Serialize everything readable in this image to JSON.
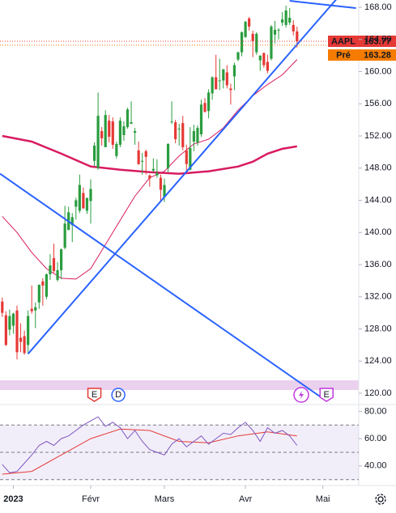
{
  "chart_data": {
    "type": "candlestick",
    "symbol": "AAPL",
    "last": {
      "label": "163.77",
      "value": 163.77
    },
    "pre": {
      "name": "Pré",
      "label": "163.28",
      "value": 163.28
    },
    "up_color": "#2a9d3f",
    "down_color": "#e53935",
    "ylim": [
      120,
      168
    ],
    "yticks": [
      {
        "value": 120,
        "label": "120.00"
      },
      {
        "value": 124,
        "label": "124.00"
      },
      {
        "value": 128,
        "label": "128.00"
      },
      {
        "value": 132,
        "label": "132.00"
      },
      {
        "value": 136,
        "label": "136.00"
      },
      {
        "value": 140,
        "label": "140.00"
      },
      {
        "value": 144,
        "label": "144.00"
      },
      {
        "value": 148,
        "label": "148.00"
      },
      {
        "value": 152,
        "label": "152.00"
      },
      {
        "value": 156,
        "label": "156.00"
      },
      {
        "value": 160,
        "label": "160.00"
      },
      {
        "value": 164,
        "label": "164.00"
      },
      {
        "value": 168,
        "label": "168.00"
      }
    ],
    "xticks": [
      {
        "value": 3,
        "label": "2023"
      },
      {
        "value": 24,
        "label": "Févr"
      },
      {
        "value": 44,
        "label": "Mars"
      },
      {
        "value": 66,
        "label": "Avr"
      },
      {
        "value": 87,
        "label": "Mai"
      }
    ],
    "candles": [
      [
        131.4,
        131.9,
        129.5,
        130.0
      ],
      [
        129.7,
        130.2,
        125.9,
        126.0
      ],
      [
        127.9,
        130.4,
        127.2,
        129.6
      ],
      [
        128.4,
        130.0,
        127.4,
        129.9
      ],
      [
        130.3,
        130.9,
        124.2,
        125.1
      ],
      [
        126.9,
        128.7,
        125.1,
        126.4
      ],
      [
        127.1,
        127.8,
        124.8,
        125.0
      ],
      [
        126.0,
        130.3,
        124.9,
        129.6
      ],
      [
        130.5,
        133.4,
        129.9,
        130.2
      ],
      [
        130.3,
        131.3,
        128.1,
        130.7
      ],
      [
        131.3,
        133.5,
        130.5,
        133.5
      ],
      [
        133.9,
        134.3,
        130.9,
        133.4
      ],
      [
        132.0,
        134.9,
        131.7,
        134.8
      ],
      [
        134.8,
        137.3,
        134.1,
        135.9
      ],
      [
        136.8,
        138.6,
        135.0,
        135.2
      ],
      [
        134.1,
        136.3,
        133.9,
        135.3
      ],
      [
        135.3,
        138.0,
        134.2,
        137.9
      ],
      [
        138.1,
        143.3,
        137.9,
        141.1
      ],
      [
        140.3,
        143.2,
        140.3,
        142.5
      ],
      [
        140.9,
        142.4,
        138.8,
        141.9
      ],
      [
        143.2,
        144.3,
        141.6,
        144.0
      ],
      [
        142.7,
        147.2,
        142.4,
        145.9
      ],
      [
        144.9,
        145.6,
        142.9,
        143.0
      ],
      [
        142.7,
        144.3,
        142.3,
        144.3
      ],
      [
        143.9,
        146.6,
        141.1,
        145.4
      ],
      [
        148.9,
        151.2,
        148.2,
        150.8
      ],
      [
        148.0,
        157.4,
        147.8,
        154.5
      ],
      [
        152.6,
        153.1,
        150.8,
        151.7
      ],
      [
        150.6,
        155.2,
        150.6,
        154.6
      ],
      [
        153.9,
        154.6,
        151.2,
        151.9
      ],
      [
        153.8,
        154.3,
        150.4,
        150.9
      ],
      [
        149.5,
        151.3,
        149.2,
        151.0
      ],
      [
        150.9,
        154.3,
        150.6,
        153.9
      ],
      [
        152.1,
        153.8,
        151.4,
        153.2
      ],
      [
        153.1,
        155.5,
        152.9,
        155.3
      ],
      [
        153.5,
        156.3,
        153.5,
        153.7
      ],
      [
        152.4,
        153.0,
        150.9,
        152.6
      ],
      [
        150.2,
        151.3,
        148.4,
        148.5
      ],
      [
        148.9,
        149.9,
        147.2,
        148.9
      ],
      [
        150.1,
        150.3,
        147.2,
        149.4
      ],
      [
        147.1,
        147.2,
        145.7,
        146.7
      ],
      [
        147.7,
        149.2,
        147.5,
        147.9
      ],
      [
        147.1,
        149.1,
        146.8,
        147.4
      ],
      [
        146.8,
        147.2,
        143.9,
        145.3
      ],
      [
        144.4,
        146.7,
        143.8,
        145.9
      ],
      [
        148.0,
        151.1,
        147.5,
        151.0
      ],
      [
        153.8,
        156.3,
        153.5,
        153.8
      ],
      [
        153.7,
        154.0,
        151.1,
        151.6
      ],
      [
        152.8,
        153.5,
        150.8,
        152.9
      ],
      [
        153.6,
        154.5,
        150.2,
        150.6
      ],
      [
        150.2,
        150.9,
        147.6,
        148.5
      ],
      [
        147.8,
        153.1,
        147.7,
        150.5
      ],
      [
        151.3,
        153.4,
        150.1,
        152.6
      ],
      [
        151.2,
        153.3,
        150.8,
        153.0
      ],
      [
        152.2,
        156.5,
        151.9,
        155.9
      ],
      [
        156.1,
        156.7,
        154.9,
        155.0
      ],
      [
        155.1,
        157.8,
        154.2,
        157.4
      ],
      [
        157.3,
        159.4,
        156.5,
        159.3
      ],
      [
        159.3,
        162.1,
        157.8,
        157.8
      ],
      [
        158.9,
        161.6,
        157.7,
        158.9
      ],
      [
        158.9,
        160.3,
        157.9,
        160.3
      ],
      [
        159.9,
        160.8,
        157.9,
        158.3
      ],
      [
        157.9,
        158.5,
        155.9,
        157.7
      ],
      [
        159.4,
        161.1,
        157.7,
        160.8
      ],
      [
        161.5,
        162.5,
        161.3,
        162.4
      ],
      [
        162.4,
        165.0,
        161.9,
        164.9
      ],
      [
        164.3,
        166.3,
        164.2,
        166.2
      ],
      [
        166.6,
        166.8,
        165.1,
        165.6
      ],
      [
        164.7,
        165.1,
        161.8,
        163.8
      ],
      [
        162.4,
        164.9,
        162.1,
        164.7
      ],
      [
        161.4,
        162.0,
        160.1,
        162.0
      ],
      [
        162.3,
        162.4,
        160.5,
        160.8
      ],
      [
        161.2,
        162.1,
        159.8,
        160.1
      ],
      [
        161.6,
        165.8,
        161.4,
        165.6
      ],
      [
        164.6,
        166.3,
        163.5,
        165.2
      ],
      [
        165.1,
        165.4,
        164.0,
        165.2
      ],
      [
        166.1,
        167.4,
        165.7,
        166.5
      ],
      [
        165.8,
        168.2,
        165.5,
        167.6
      ],
      [
        166.1,
        167.9,
        165.8,
        166.7
      ],
      [
        165.8,
        166.4,
        164.5,
        165.0
      ],
      [
        165.0,
        165.6,
        163.0,
        163.77
      ]
    ],
    "overlays": [
      {
        "color": "#d81b60",
        "width": 1,
        "x": [
          0,
          4,
          8,
          12,
          16,
          20,
          24,
          28,
          32,
          36,
          40,
          44,
          48,
          52,
          56,
          60,
          64,
          68,
          72,
          76,
          80
        ],
        "values": [
          142.0,
          140.0,
          137.5,
          135.5,
          134.3,
          134.2,
          135.5,
          138.5,
          141.5,
          144.5,
          146.8,
          147.6,
          149.5,
          151.0,
          151.6,
          153.0,
          155.2,
          157.0,
          158.4,
          159.6,
          161.5
        ]
      },
      {
        "color": "#d81b60",
        "width": 2.5,
        "x": [
          0,
          8,
          16,
          24,
          32,
          40,
          48,
          56,
          64,
          68,
          72,
          76,
          80
        ],
        "values": [
          152.0,
          151.3,
          149.8,
          148.2,
          147.8,
          147.5,
          147.3,
          147.6,
          148.2,
          148.8,
          149.8,
          150.4,
          150.7
        ]
      }
    ],
    "trendlines": [
      {
        "color": "#2962ff",
        "from": [
          7,
          124.9
        ],
        "to": [
          81,
          163.9
        ]
      },
      {
        "color": "#2962ff",
        "from": [
          -0.6,
          147.3
        ],
        "to": [
          86.2,
          119.6
        ]
      },
      {
        "color": "#2962ff",
        "from": [
          78,
          168.8
        ],
        "to": [
          96,
          167.9
        ]
      }
    ],
    "events": [
      {
        "label": "E",
        "at": 25,
        "color": "#e53935"
      },
      {
        "label": "D",
        "at": 31.5,
        "color": "#2962ff"
      },
      {
        "label": "E",
        "at": 88,
        "color": "#c038e0"
      }
    ],
    "rsi": {
      "ylim": [
        30,
        82
      ],
      "yticks": [
        {
          "value": 40,
          "label": "40.00"
        },
        {
          "value": 60,
          "label": "60.00"
        },
        {
          "value": 80,
          "label": "80.00"
        }
      ],
      "bands": [
        70,
        50,
        30
      ],
      "color": "#7e57c2",
      "ma_color": "#e53935",
      "x": [
        0,
        2,
        4,
        6,
        8,
        10,
        12,
        14,
        16,
        18,
        20,
        22,
        24,
        26,
        28,
        30,
        32,
        34,
        36,
        38,
        40,
        42,
        44,
        46,
        48,
        50,
        52,
        54,
        56,
        58,
        60,
        62,
        64,
        66,
        68,
        70,
        72,
        74,
        76,
        78,
        80
      ],
      "values": [
        41,
        35,
        36,
        42,
        48,
        55,
        58,
        55,
        60,
        62,
        66,
        70,
        73,
        76,
        69,
        72,
        68,
        60,
        66,
        58,
        52,
        50,
        48,
        56,
        60,
        54,
        58,
        62,
        56,
        60,
        64,
        63,
        68,
        72,
        66,
        58,
        68,
        64,
        66,
        62,
        55
      ],
      "ma_x": [
        0,
        8,
        16,
        24,
        32,
        40,
        48,
        56,
        64,
        72,
        80
      ],
      "ma": [
        34,
        36,
        48,
        60,
        67,
        66,
        58,
        57,
        62,
        65,
        62
      ]
    }
  }
}
